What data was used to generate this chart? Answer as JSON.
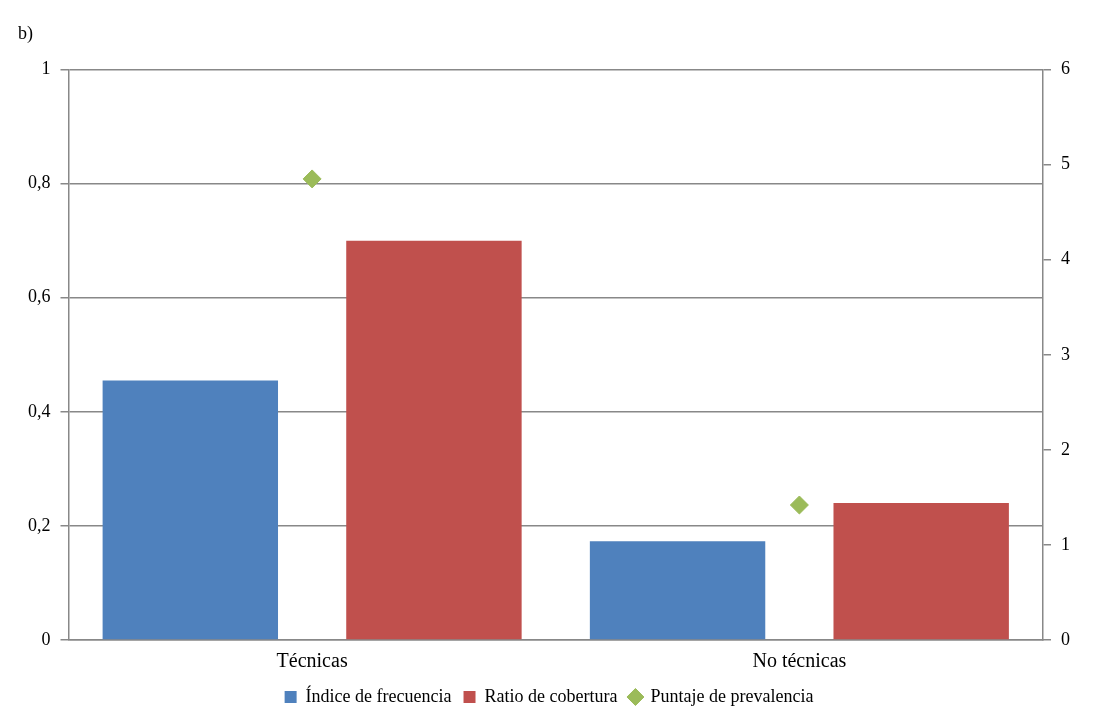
{
  "chart_data": {
    "type": "bar",
    "title": "b)",
    "categories": [
      "Técnicas",
      "No técnicas"
    ],
    "series": [
      {
        "name": "Índice de frecuencia",
        "color": "#4f81bd",
        "values": [
          0.455,
          0.173
        ]
      },
      {
        "name": "Ratio de cobertura",
        "color": "#c0504d",
        "values": [
          0.7,
          0.24
        ]
      },
      {
        "name": "Puntaje de prevalencia",
        "type": "scatter",
        "axis": "y2",
        "marker": "diamond",
        "color": "#9bbb59",
        "x": [
          "Técnicas",
          "No técnicas"
        ],
        "values": [
          4.85,
          1.42
        ]
      }
    ],
    "ylim": [
      0,
      1
    ],
    "yticks": [
      0,
      {
        "value": 0.2,
        "label": "0,2"
      },
      {
        "value": 0.4,
        "label": "0,4"
      },
      {
        "value": 0.6,
        "label": "0,6"
      },
      {
        "value": 0.8,
        "label": "0,8"
      },
      1
    ],
    "y2lim": [
      0,
      6
    ],
    "y2ticks": [
      0,
      1,
      2,
      3,
      4,
      5,
      6
    ],
    "grid": "y",
    "legend": "bottom"
  }
}
